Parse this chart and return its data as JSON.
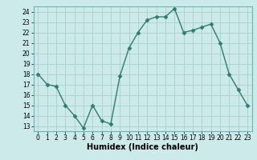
{
  "x": [
    0,
    1,
    2,
    3,
    4,
    5,
    6,
    7,
    8,
    9,
    10,
    11,
    12,
    13,
    14,
    15,
    16,
    17,
    18,
    19,
    20,
    21,
    22,
    23
  ],
  "y": [
    18,
    17,
    16.8,
    15,
    14,
    12.8,
    15,
    13.5,
    13.2,
    17.8,
    20.5,
    22,
    23.2,
    23.5,
    23.5,
    24.3,
    22,
    22.2,
    22.5,
    22.8,
    21,
    18,
    16.5,
    15
  ],
  "line_color": "#2e7d6e",
  "marker": "D",
  "marker_size": 2.5,
  "bg_color": "#cceaea",
  "grid_color": "#aacece",
  "grid_minor_color": "#bbd8d8",
  "xlabel": "Humidex (Indice chaleur)",
  "xlim": [
    -0.5,
    23.5
  ],
  "ylim": [
    12.5,
    24.5
  ],
  "yticks": [
    13,
    14,
    15,
    16,
    17,
    18,
    19,
    20,
    21,
    22,
    23,
    24
  ],
  "xticks": [
    0,
    1,
    2,
    3,
    4,
    5,
    6,
    7,
    8,
    9,
    10,
    11,
    12,
    13,
    14,
    15,
    16,
    17,
    18,
    19,
    20,
    21,
    22,
    23
  ],
  "tick_fontsize": 5.5,
  "label_fontsize": 7,
  "spine_color": "#7aafaf",
  "line_width": 1.0
}
